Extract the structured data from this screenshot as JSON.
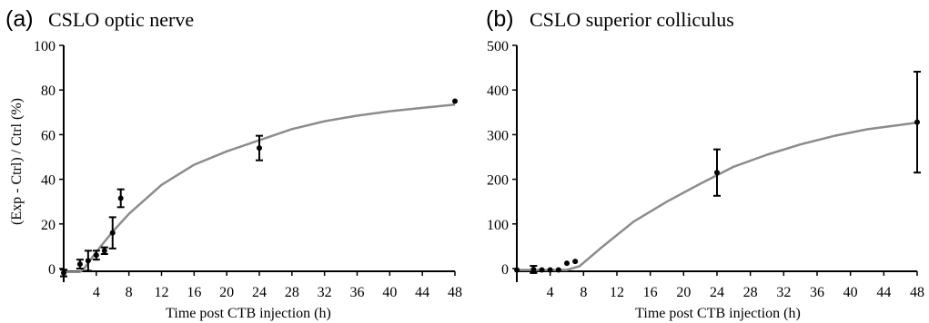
{
  "colors": {
    "fit_curve": "#8c8c8c",
    "points": "#000000",
    "axes": "#000000"
  },
  "chart_data": [
    {
      "type": "scatter",
      "panel_label": "(a)",
      "title": "CSLO optic nerve",
      "xlabel": "Time post CTB injection (h)",
      "ylabel": "(Exp - Ctrl) / Ctrl (%)",
      "xlim": [
        0,
        48
      ],
      "ylim": [
        0,
        100
      ],
      "xticks": [
        "4",
        "8",
        "12",
        "16",
        "20",
        "24",
        "28",
        "32",
        "36",
        "40",
        "44",
        "48"
      ],
      "yticks": [
        "0",
        "20",
        "40",
        "60",
        "80",
        "100"
      ],
      "grid": false,
      "series": [
        {
          "points": [
            {
              "x": 0,
              "y": -2,
              "err": 1.5
            },
            {
              "x": 2,
              "y": 2,
              "err": 2
            },
            {
              "x": 3,
              "y": 3.5,
              "err": 4.5
            },
            {
              "x": 4,
              "y": 6,
              "err": 2
            },
            {
              "x": 5,
              "y": 8,
              "err": 1.5
            },
            {
              "x": 6,
              "y": 16,
              "err": 7
            },
            {
              "x": 7,
              "y": 31.5,
              "err": 4
            },
            {
              "x": 24,
              "y": 54,
              "err": 5.5
            },
            {
              "x": 48,
              "y": 75,
              "err": 0
            }
          ],
          "fit_curve": {
            "x": [
              0,
              2,
              2.5,
              4,
              6,
              8,
              12,
              16,
              20,
              24,
              28,
              32,
              36,
              40,
              44,
              48
            ],
            "y": [
              -1.5,
              -1.5,
              0,
              7.5,
              16.5,
              24.5,
              37.5,
              46.5,
              52.5,
              57.5,
              62.5,
              66,
              68.5,
              70.5,
              72,
              73.5
            ]
          }
        }
      ]
    },
    {
      "type": "scatter",
      "panel_label": "(b)",
      "title": "CSLO superior colliculus",
      "xlabel": "Time post CTB injection (h)",
      "ylabel": "",
      "xlim": [
        0,
        48
      ],
      "ylim": [
        0,
        500
      ],
      "xticks": [
        "4",
        "8",
        "12",
        "16",
        "20",
        "24",
        "28",
        "32",
        "36",
        "40",
        "44",
        "48"
      ],
      "yticks": [
        "0",
        "100",
        "200",
        "300",
        "400",
        "500"
      ],
      "grid": false,
      "series": [
        {
          "points": [
            {
              "x": 0,
              "y": -3,
              "err": 0
            },
            {
              "x": 2,
              "y": -2,
              "err": 8
            },
            {
              "x": 3,
              "y": -3,
              "err": 0
            },
            {
              "x": 4,
              "y": -3,
              "err": 0
            },
            {
              "x": 5,
              "y": -3,
              "err": 0
            },
            {
              "x": 6,
              "y": 12,
              "err": 0
            },
            {
              "x": 7,
              "y": 16,
              "err": 0
            },
            {
              "x": 24,
              "y": 215,
              "err": 52
            },
            {
              "x": 48,
              "y": 328,
              "err": 113
            }
          ],
          "fit_curve": {
            "x": [
              0,
              6,
              7.5,
              10,
              14,
              18,
              22,
              26,
              30,
              34,
              38,
              42,
              46,
              48
            ],
            "y": [
              -3,
              -3,
              5,
              45,
              105,
              150,
              190,
              228,
              255,
              278,
              297,
              312,
              322,
              327
            ]
          }
        }
      ]
    }
  ]
}
